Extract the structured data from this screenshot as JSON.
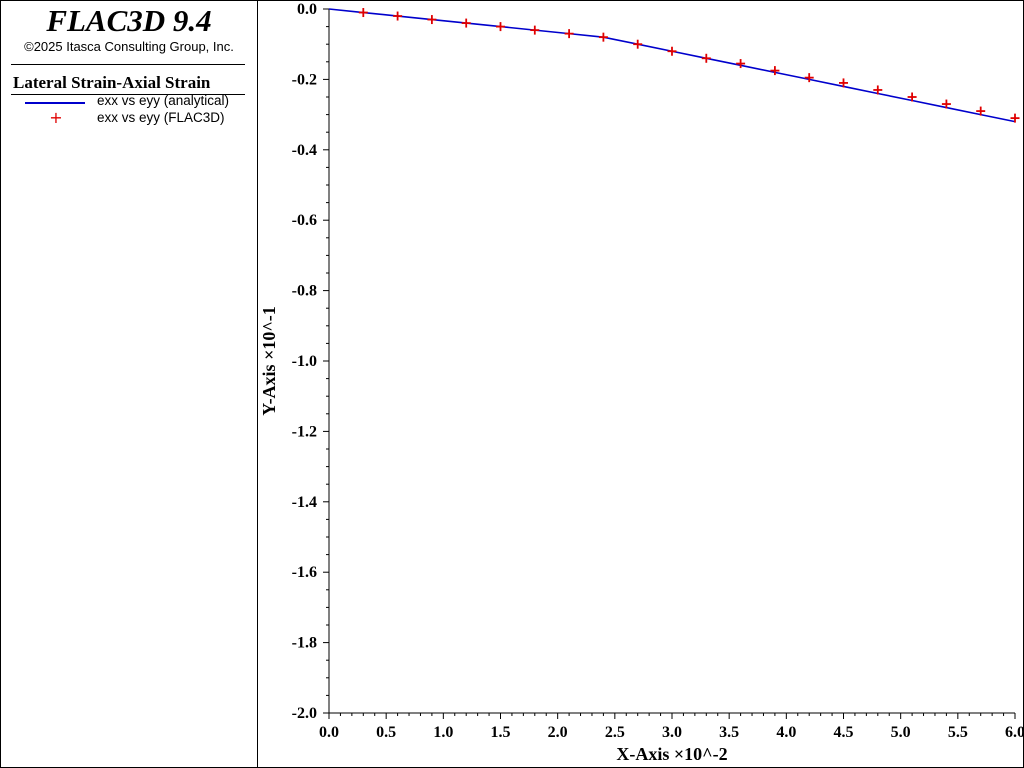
{
  "header": {
    "app_title": "FLAC3D 9.4",
    "copyright": "©2025 Itasca Consulting Group, Inc."
  },
  "legend": {
    "plot_title": "Lateral Strain-Axial Strain",
    "entries": [
      {
        "label": "exx vs eyy (analytical)",
        "style": "line",
        "color": "#0000cc"
      },
      {
        "label": "exx vs eyy (FLAC3D)",
        "style": "cross",
        "color": "#e00000"
      }
    ]
  },
  "chart_data": {
    "type": "line",
    "xlabel": "X-Axis ×10^-2",
    "ylabel": "Y-Axis ×10^-1",
    "xlim": [
      0.0,
      6.0
    ],
    "ylim": [
      -2.0,
      0.0
    ],
    "x_ticks": [
      "0.0",
      "0.5",
      "1.0",
      "1.5",
      "2.0",
      "2.5",
      "3.0",
      "3.5",
      "4.0",
      "4.5",
      "5.0",
      "5.5",
      "6.0"
    ],
    "y_ticks": [
      "0.0",
      "-0.2",
      "-0.4",
      "-0.6",
      "-0.8",
      "-1.0",
      "-1.2",
      "-1.4",
      "-1.6",
      "-1.8",
      "-2.0"
    ],
    "series": [
      {
        "name": "exx vs eyy (analytical)",
        "style": "line",
        "color": "#0000cc",
        "x": [
          0.0,
          0.3,
          0.6,
          0.9,
          1.2,
          1.5,
          1.8,
          2.1,
          2.4,
          2.7,
          3.0,
          3.3,
          3.6,
          3.9,
          4.2,
          4.5,
          4.8,
          5.1,
          5.4,
          5.7,
          6.0
        ],
        "y": [
          0.0,
          -0.01,
          -0.02,
          -0.03,
          -0.04,
          -0.05,
          -0.06,
          -0.07,
          -0.08,
          -0.1,
          -0.12,
          -0.14,
          -0.16,
          -0.18,
          -0.2,
          -0.22,
          -0.24,
          -0.26,
          -0.28,
          -0.3,
          -0.32
        ]
      },
      {
        "name": "exx vs eyy (FLAC3D)",
        "style": "cross",
        "color": "#e00000",
        "x": [
          0.3,
          0.6,
          0.9,
          1.2,
          1.5,
          1.8,
          2.1,
          2.4,
          2.7,
          3.0,
          3.3,
          3.6,
          3.9,
          4.2,
          4.5,
          4.8,
          5.1,
          5.4,
          5.7,
          6.0
        ],
        "y": [
          -0.01,
          -0.02,
          -0.03,
          -0.04,
          -0.05,
          -0.06,
          -0.07,
          -0.08,
          -0.1,
          -0.12,
          -0.14,
          -0.155,
          -0.175,
          -0.195,
          -0.21,
          -0.23,
          -0.25,
          -0.27,
          -0.29,
          -0.31
        ]
      }
    ]
  }
}
